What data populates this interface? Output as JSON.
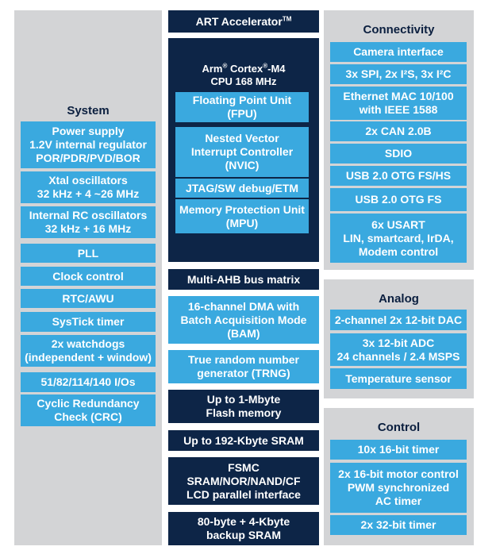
{
  "colors": {
    "panel": "#d3d4d6",
    "light_block": "#3aa9df",
    "dark_block": "#0d2547",
    "title_text": "#0b1f3f"
  },
  "system": {
    "title": "System",
    "blocks": [
      [
        "Power supply",
        "1.2V internal regulator",
        "POR/PDR/PVD/BOR"
      ],
      [
        "Xtal oscillators",
        "32 kHz + 4 ~26 MHz"
      ],
      [
        "Internal RC oscillators",
        "32 kHz + 16 MHz"
      ],
      [
        "PLL"
      ],
      [
        "Clock control"
      ],
      [
        "RTC/AWU"
      ],
      [
        "SysTick timer"
      ],
      [
        "2x watchdogs",
        "(independent + window)"
      ],
      [
        "51/82/114/140 I/Os"
      ],
      [
        "Cyclic Redundancy",
        "Check (CRC)"
      ]
    ]
  },
  "core": {
    "art": {
      "name": "ART Accelerator",
      "sup": "TM"
    },
    "cpu": {
      "line1_a": "Arm",
      "reg1": "®",
      "line1_b": " Cortex",
      "reg2": "®",
      "line1_c": "-M4",
      "line2": "CPU 168 MHz"
    },
    "units": [
      [
        "Floating Point Unit",
        "(FPU)"
      ],
      [
        "Nested Vector",
        "Interrupt Controller",
        "(NVIC)"
      ],
      [
        "JTAG/SW debug/ETM"
      ],
      [
        "Memory Protection Unit",
        "(MPU)"
      ]
    ],
    "bus": "Multi-AHB bus matrix",
    "dma": [
      "16-channel DMA with",
      "Batch Acquisition Mode",
      "(BAM)"
    ],
    "trng": [
      "True random number",
      "generator (TRNG)"
    ],
    "flash": [
      "Up to 1-Mbyte",
      "Flash memory"
    ],
    "sram": "Up to 192-Kbyte SRAM",
    "fsmc": [
      "FSMC",
      "SRAM/NOR/NAND/CF",
      "LCD parallel interface"
    ],
    "backup": [
      "80-byte + 4-Kbyte",
      "backup SRAM"
    ]
  },
  "connectivity": {
    "title": "Connectivity",
    "blocks": [
      [
        "Camera interface"
      ],
      [
        "3x SPI, 2x I²S, 3x I²C"
      ],
      [
        "Ethernet MAC 10/100",
        "with IEEE 1588"
      ],
      [
        "2x CAN 2.0B"
      ],
      [
        "SDIO"
      ],
      [
        "USB 2.0 OTG FS/HS"
      ],
      [
        "USB 2.0 OTG FS"
      ],
      [
        "6x USART",
        "LIN, smartcard, IrDA,",
        "Modem control"
      ]
    ]
  },
  "analog": {
    "title": "Analog",
    "blocks": [
      [
        "2-channel 2x 12-bit DAC"
      ],
      [
        "3x 12-bit ADC",
        "24 channels / 2.4 MSPS"
      ],
      [
        "Temperature sensor"
      ]
    ]
  },
  "control": {
    "title": "Control",
    "blocks": [
      [
        "10x 16-bit timer"
      ],
      [
        "2x 16-bit motor control",
        "PWM synchronized",
        "AC timer"
      ],
      [
        "2x 32-bit timer"
      ]
    ]
  }
}
